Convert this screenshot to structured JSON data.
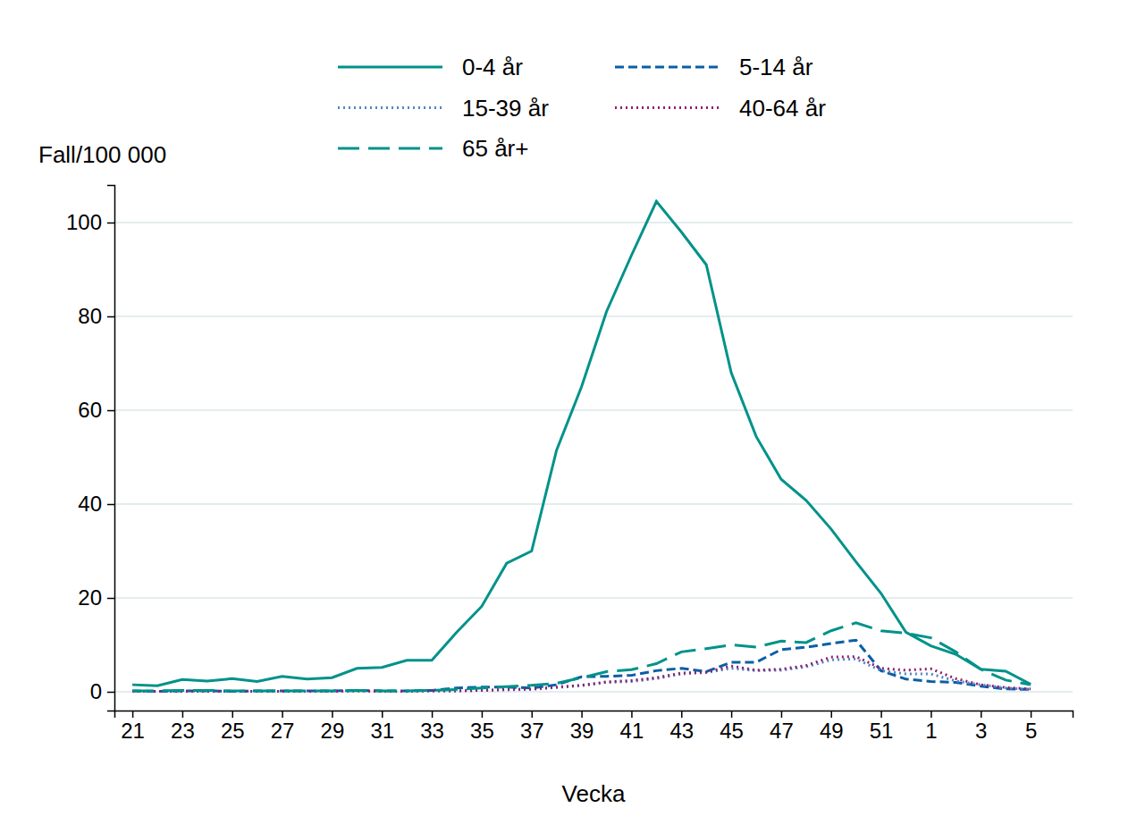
{
  "chart_data": {
    "type": "line",
    "xlabel": "Vecka",
    "ylabel": "Fall/100 000",
    "categories": [
      "21",
      null,
      "23",
      null,
      "25",
      null,
      "27",
      null,
      "29",
      null,
      "31",
      null,
      "33",
      null,
      "35",
      null,
      "37",
      null,
      "39",
      null,
      "41",
      null,
      "43",
      null,
      "45",
      null,
      "47",
      null,
      "49",
      null,
      "51",
      null,
      "1",
      null,
      "3",
      null,
      "5"
    ],
    "series": [
      {
        "name": "0-4 år",
        "color": "#00928a",
        "line_style": "solid",
        "values": [
          1.5,
          1.3,
          2.6,
          2.3,
          2.8,
          2.2,
          3.3,
          2.7,
          3.0,
          5.0,
          5.2,
          6.7,
          6.7,
          12.7,
          18.2,
          27.4,
          30,
          51.5,
          65,
          81,
          93,
          104.5,
          98,
          91,
          68,
          54.4,
          45.3,
          40.8,
          34.7,
          27.7,
          21,
          12.7,
          9.8,
          8.0,
          4.8,
          4.4,
          1.6
        ]
      },
      {
        "name": "5-14 år",
        "color": "#0a5fa5",
        "line_style": "dashed",
        "values": [
          0.2,
          0.1,
          0.2,
          0.2,
          0.1,
          0.2,
          0.2,
          0.2,
          0.2,
          0.3,
          0.2,
          0.2,
          0.3,
          0.8,
          1.0,
          1.0,
          0.8,
          1.5,
          3.2,
          3.3,
          3.5,
          4.5,
          5.0,
          4.3,
          6.3,
          6.3,
          9.0,
          9.5,
          10.3,
          11.0,
          4.5,
          2.7,
          2.2,
          2.0,
          1.2,
          0.6,
          0.5
        ]
      },
      {
        "name": "15-39 år",
        "color": "#4f86c6",
        "line_style": "dotted",
        "values": [
          0.1,
          0.1,
          0.1,
          0.1,
          0.1,
          0.1,
          0.1,
          0.1,
          0.1,
          0.2,
          0.1,
          0.1,
          0.2,
          0.2,
          0.3,
          0.4,
          0.5,
          0.9,
          1.3,
          2.0,
          2.2,
          2.8,
          3.8,
          4.1,
          5.0,
          4.5,
          4.6,
          5.3,
          6.8,
          7.0,
          4.5,
          3.8,
          3.8,
          2.3,
          1.5,
          0.8,
          0.5
        ]
      },
      {
        "name": "40-64 år",
        "color": "#8e1f72",
        "line_style": "dotted",
        "values": [
          0.1,
          0.1,
          0.1,
          0.1,
          0.1,
          0.1,
          0.1,
          0.1,
          0.1,
          0.2,
          0.1,
          0.1,
          0.2,
          0.2,
          0.3,
          0.5,
          0.6,
          1.0,
          1.4,
          2.1,
          2.4,
          3.0,
          4.0,
          4.2,
          5.5,
          4.6,
          4.8,
          5.6,
          7.4,
          7.5,
          5.0,
          4.6,
          4.9,
          2.8,
          1.5,
          0.9,
          0.6
        ]
      },
      {
        "name": "65 år+",
        "color": "#00928a",
        "line_style": "longdash",
        "values": [
          0.2,
          0.2,
          0.3,
          0.3,
          0.2,
          0.2,
          0.2,
          0.2,
          0.2,
          0.3,
          0.2,
          0.2,
          0.3,
          0.5,
          0.8,
          1.1,
          1.4,
          1.8,
          3.0,
          4.3,
          4.7,
          6.0,
          8.5,
          9.2,
          10.0,
          9.5,
          10.8,
          10.5,
          13.0,
          14.7,
          13.0,
          12.5,
          11.5,
          8.5,
          4.8,
          2.5,
          1.5
        ]
      }
    ],
    "ylim": [
      -4,
      108
    ],
    "yticks": [
      0,
      20,
      40,
      60,
      80,
      100
    ],
    "grid": true,
    "legend": "top"
  }
}
